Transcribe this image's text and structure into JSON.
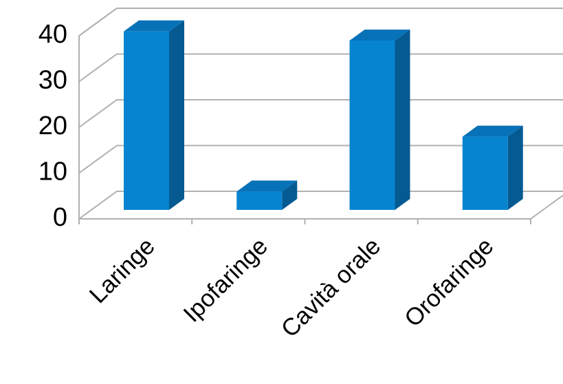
{
  "chart_data": {
    "type": "bar3d",
    "categories": [
      "Laringe",
      "Ipofaringe",
      "Cavità orale",
      "Orofaringe"
    ],
    "values": [
      39,
      4,
      37,
      16
    ],
    "color": "#0784d0",
    "ylim": [
      0,
      40
    ],
    "yticks": [
      0,
      10,
      20,
      30,
      40
    ],
    "grid": true
  }
}
